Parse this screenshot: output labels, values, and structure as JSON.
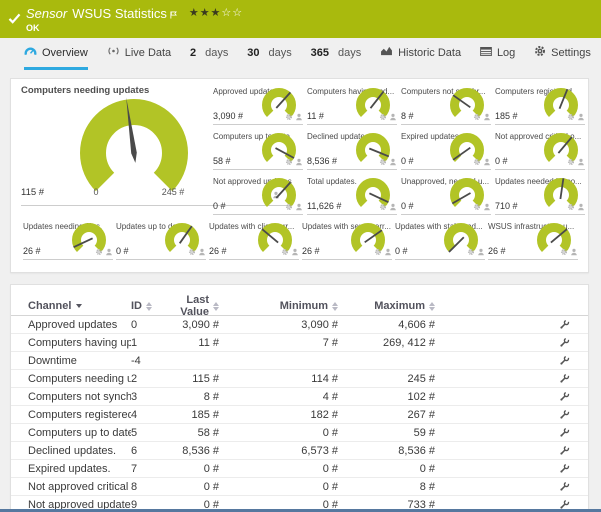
{
  "header": {
    "kind_label": "Sensor",
    "title": "WSUS Statistics",
    "status": "OK",
    "rating_filled": 3,
    "rating_total": 5,
    "stars_full": "★★★",
    "stars_empty": "☆☆"
  },
  "tabs": [
    {
      "label": "Overview",
      "icon": "gauge-icon",
      "active": true
    },
    {
      "label": "Live Data",
      "icon": "broadcast-icon"
    },
    {
      "num": "2",
      "label": "days"
    },
    {
      "num": "30",
      "label": "days"
    },
    {
      "num": "365",
      "label": "days"
    },
    {
      "label": "Historic Data",
      "icon": "area-chart-icon"
    },
    {
      "label": "Log",
      "icon": "log-table-icon"
    },
    {
      "label": "Settings",
      "icon": "gear-icon"
    }
  ],
  "icons": {
    "header": [
      "check-icon",
      "flag-icon",
      "star-rating"
    ],
    "gauge_footer": [
      "gear-icon",
      "user-icon"
    ],
    "table_row_action": "wrench-icon"
  },
  "colors": {
    "header_green": "#a9ba0d",
    "gauge_green": "#b2c426",
    "accent_blue": "#2ea9e0",
    "needle": "#4a4a4a",
    "bottom_bar_blue": "#56789f"
  },
  "gauges": {
    "main": {
      "title": "Computers needing updates",
      "value": "115 #",
      "scale_min": "0",
      "scale_max": "245 #",
      "angle": -8
    },
    "grid": [
      {
        "title": "Approved updates",
        "value": "3,090 #",
        "angle": 42
      },
      {
        "title": "Computers having upd...",
        "value": "11 #",
        "angle": 38
      },
      {
        "title": "Computers not synchr...",
        "value": "8 #",
        "angle": -55
      },
      {
        "title": "Computers registered",
        "value": "185 #",
        "angle": 22
      },
      {
        "title": "Computers up to date",
        "value": "58 #",
        "angle": 118
      },
      {
        "title": "Declined updates.",
        "value": "8,536 #",
        "angle": 112
      },
      {
        "title": "Expired updates.",
        "value": "0 #",
        "angle": -125
      },
      {
        "title": "Not approved critical o...",
        "value": "0 #",
        "angle": 40
      },
      {
        "title": "Not approved updates",
        "value": "0 #",
        "angle": 42
      },
      {
        "title": "Total updates.",
        "value": "11,626 #",
        "angle": 115
      },
      {
        "title": "Unapproved, needed u...",
        "value": "0 #",
        "angle": -120
      },
      {
        "title": "Updates needed by co...",
        "value": "710 #",
        "angle": 8
      }
    ],
    "bottom": [
      {
        "title": "Updates needing files.",
        "value": "26 #",
        "angle": -115
      },
      {
        "title": "Updates up to date.",
        "value": "0 #",
        "angle": 35
      },
      {
        "title": "Updates with client err...",
        "value": "26 #",
        "angle": -50
      },
      {
        "title": "Updates with server err...",
        "value": "26 #",
        "angle": 55
      },
      {
        "title": "Updates with stale upd...",
        "value": "0 #",
        "angle": -135
      },
      {
        "title": "WSUS infrastructure u...",
        "value": "26 #",
        "angle": 50
      }
    ]
  },
  "table": {
    "columns": [
      {
        "label": "Channel",
        "sort": "desc"
      },
      {
        "label": "ID",
        "sort": "both"
      },
      {
        "label": "Last Value",
        "sort": "both"
      },
      {
        "label": "Minimum",
        "sort": "both"
      },
      {
        "label": "Maximum",
        "sort": "both"
      }
    ],
    "rows": [
      {
        "channel": "Approved updates",
        "id": "0",
        "last": "3,090 #",
        "min": "3,090 #",
        "max": "4,606 #"
      },
      {
        "channel": "Computers having update ...",
        "id": "1",
        "last": "11 #",
        "min": "7 #",
        "max": "269, 412 #"
      },
      {
        "channel": "Downtime",
        "id": "-4",
        "last": "",
        "min": "",
        "max": ""
      },
      {
        "channel": "Computers needing updat...",
        "id": "2",
        "last": "115 #",
        "min": "114 #",
        "max": "245 #"
      },
      {
        "channel": "Computers not synchroniz...",
        "id": "3",
        "last": "8 #",
        "min": "4 #",
        "max": "102 #"
      },
      {
        "channel": "Computers registered",
        "id": "4",
        "last": "185 #",
        "min": "182 #",
        "max": "267 #"
      },
      {
        "channel": "Computers up to date",
        "id": "5",
        "last": "58 #",
        "min": "0 #",
        "max": "59 #"
      },
      {
        "channel": "Declined updates.",
        "id": "6",
        "last": "8,536 #",
        "min": "6,573 #",
        "max": "8,536 #"
      },
      {
        "channel": "Expired updates.",
        "id": "7",
        "last": "0 #",
        "min": "0 #",
        "max": "0 #"
      },
      {
        "channel": "Not approved critical or se...",
        "id": "8",
        "last": "0 #",
        "min": "0 #",
        "max": "8 #"
      },
      {
        "channel": "Not approved updates.",
        "id": "9",
        "last": "0 #",
        "min": "0 #",
        "max": "733 #"
      }
    ]
  }
}
